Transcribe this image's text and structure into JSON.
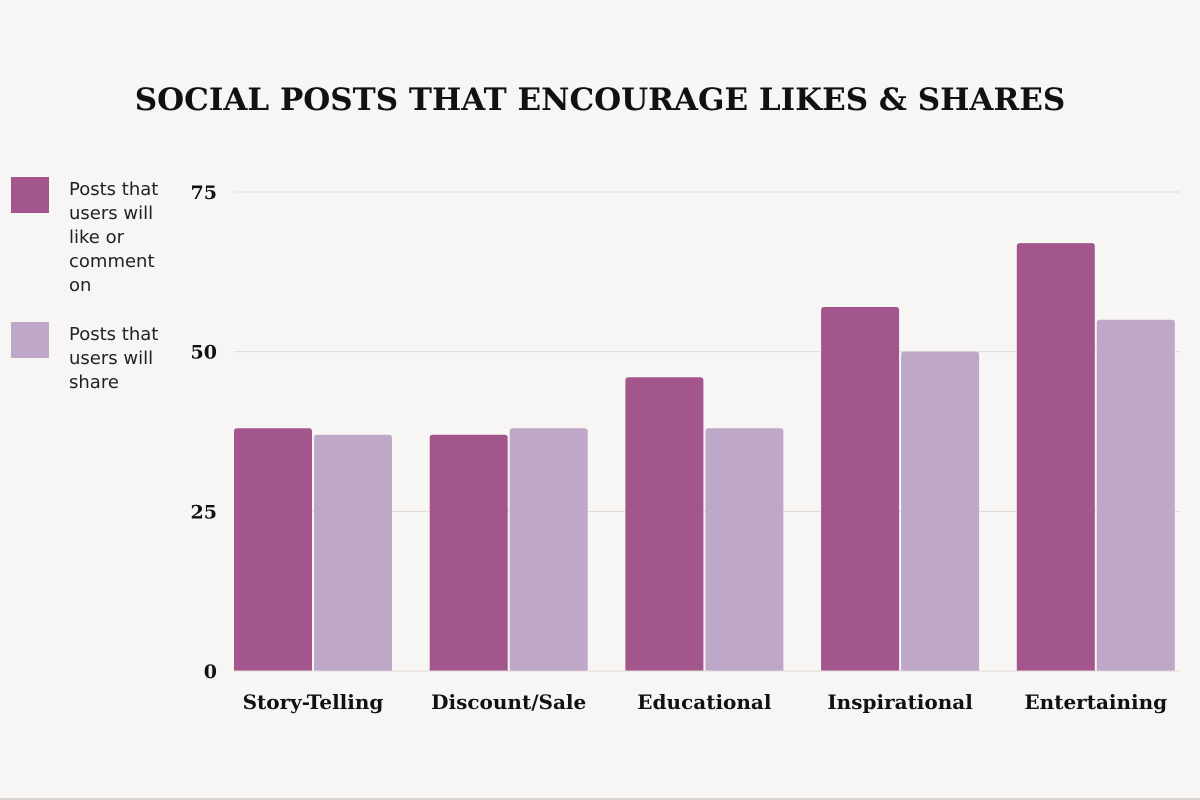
{
  "chart_data": {
    "type": "bar",
    "title": "SOCIAL POSTS THAT ENCOURAGE LIKES & SHARES",
    "xlabel": "",
    "ylabel": "",
    "categories": [
      "Story-Telling",
      "Discount/Sale",
      "Educational",
      "Inspirational",
      "Entertaining"
    ],
    "series": [
      {
        "name": "Posts that users will like or comment on",
        "color": "#a2568c",
        "values": [
          38,
          37,
          46,
          57,
          67
        ]
      },
      {
        "name": "Posts that users will share",
        "color": "#bfa8c7",
        "values": [
          37,
          38,
          38,
          50,
          55
        ]
      }
    ],
    "yticks": [
      0,
      25,
      50,
      75
    ],
    "ylim": [
      0,
      75
    ],
    "grid": true,
    "legend_position": "left"
  }
}
